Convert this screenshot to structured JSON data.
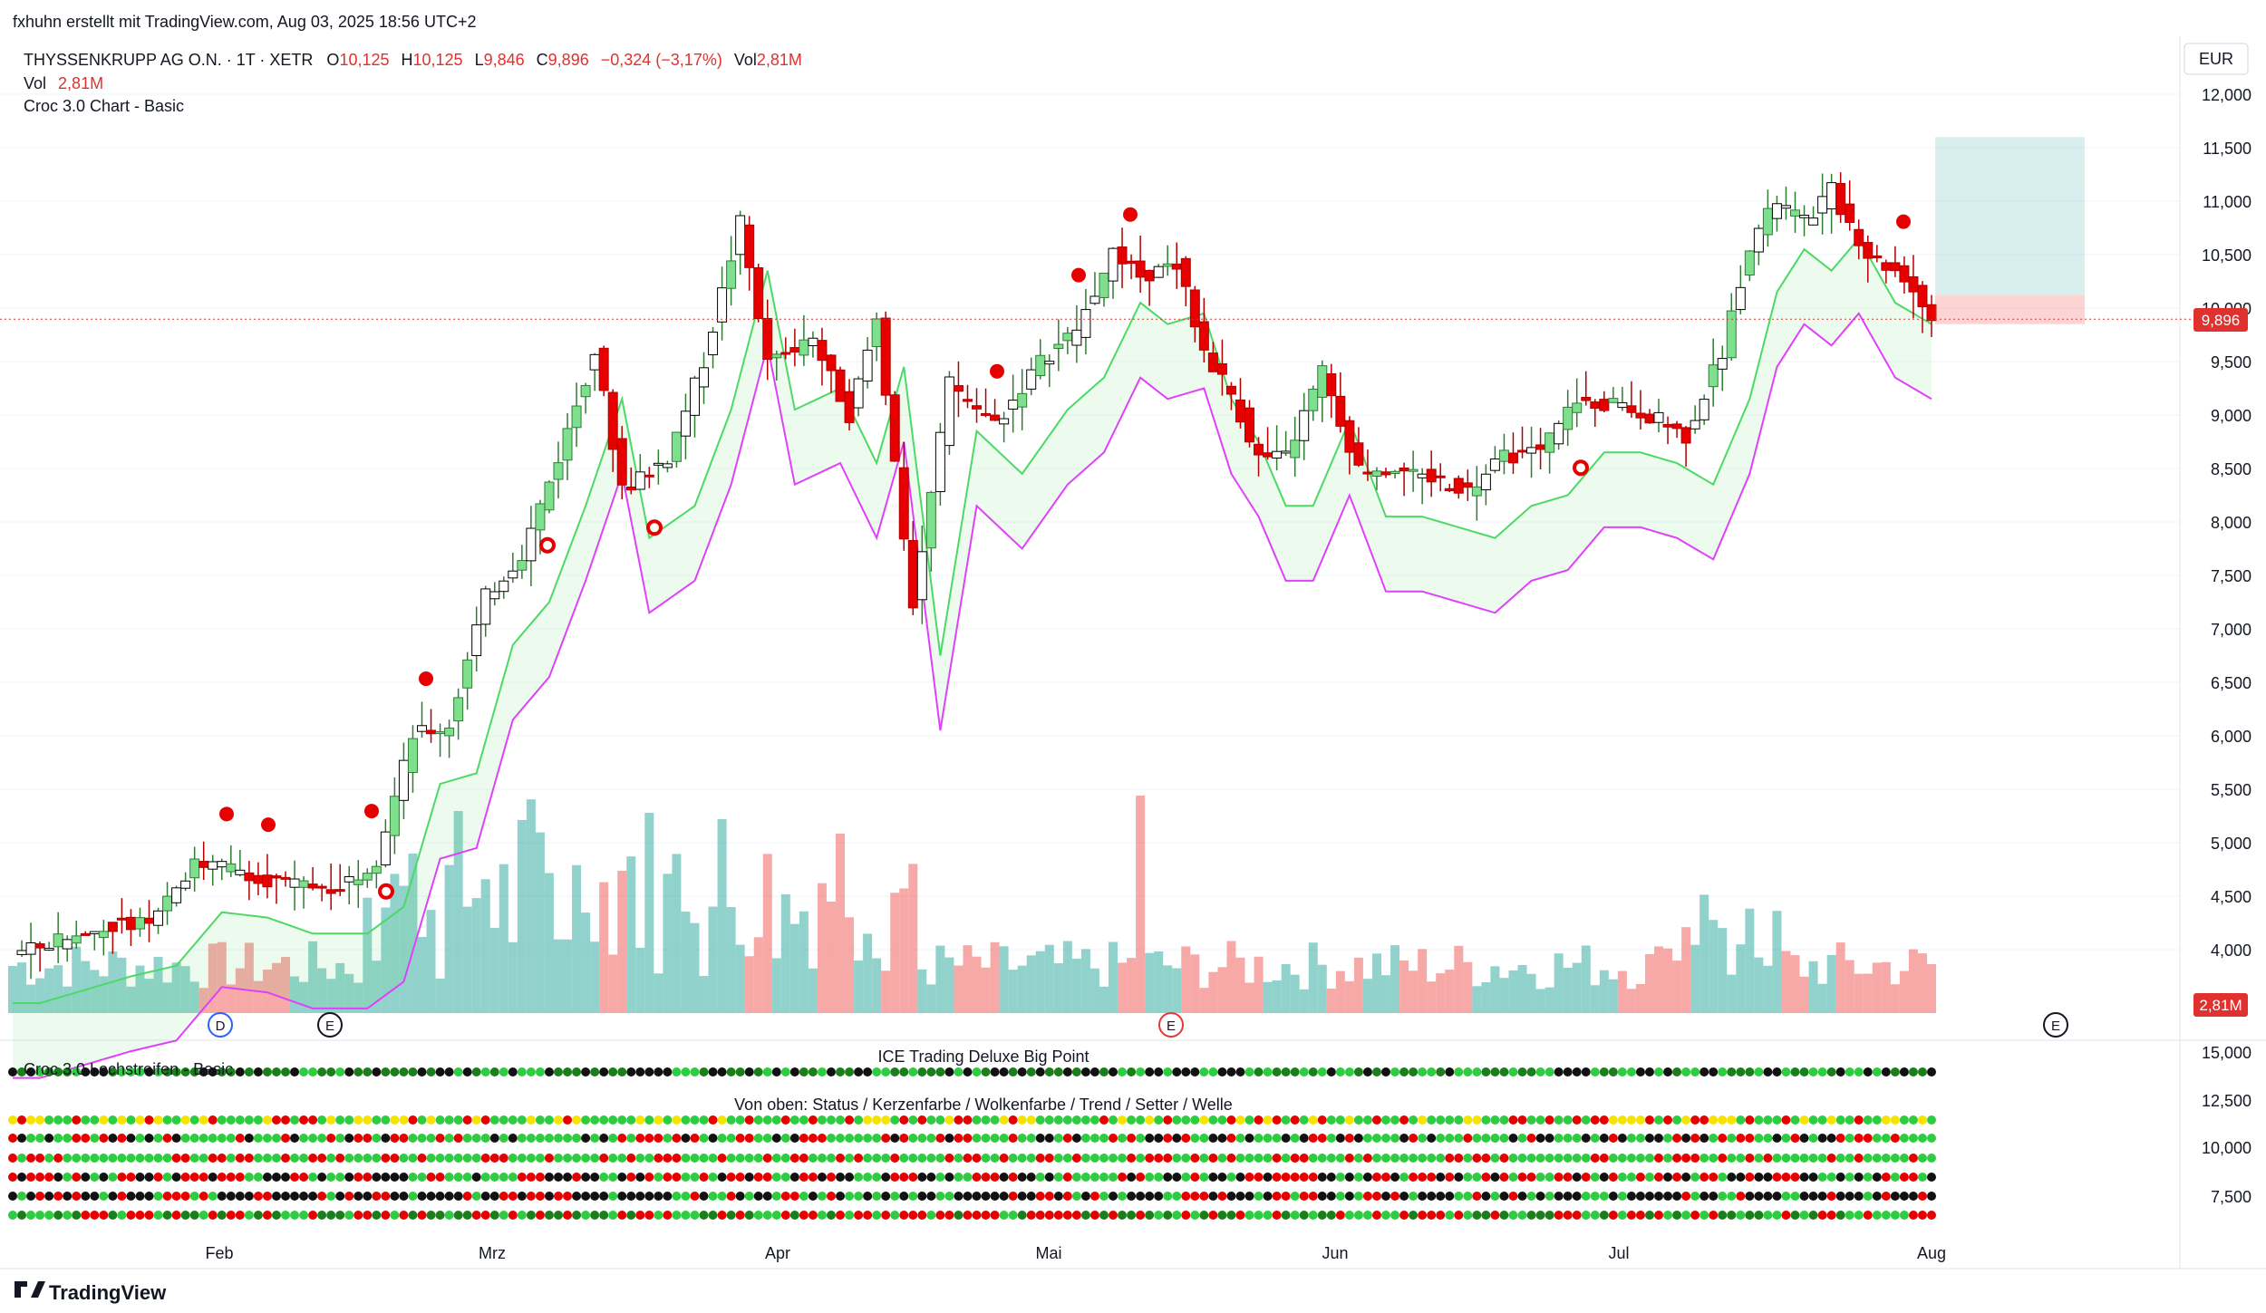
{
  "header": {
    "author_line": "fxhuhn erstellt mit TradingView.com, Aug 03, 2025 18:56 UTC+2",
    "symbol": "THYSSENKRUPP AG O.N. · 1T · XETR",
    "o_label": "O",
    "o_value": "10,125",
    "h_label": "H",
    "h_value": "10,125",
    "l_label": "L",
    "l_value": "9,846",
    "c_label": "C",
    "c_value": "9,896",
    "change": "−0,324 (−3,17%)",
    "vol_label": "Vol",
    "vol_value": "2,81M",
    "vol_line_label": "Vol",
    "vol_line_value": "2,81M",
    "indicator_name": "Croc 3.0 Chart - Basic"
  },
  "currency": "EUR",
  "price_badge": "9,896",
  "volume_badge": "2,81M",
  "lower_pane": {
    "title": "ICE Trading Deluxe Big Point",
    "indicator_name": "Croc 3.0 Lochstreifen - Basic",
    "subtitle": "Von oben: Status / Kerzenfarbe / Wolkenfarbe / Trend / Setter / Welle",
    "axis_labels": [
      "15,000",
      "12,500",
      "10,000",
      "7,500"
    ]
  },
  "event_markers": [
    "D",
    "E",
    "E",
    "E"
  ],
  "footer_logo": "TradingView",
  "colors": {
    "up": "#26a69a",
    "down": "#ef5350",
    "cloud_green": "#4cd964",
    "cloud_magenta": "#e040fb",
    "red": "#e60000",
    "green": "#2ecc40",
    "dark_green": "#1a7f1a",
    "yellow": "#f5e400",
    "black": "#111111"
  },
  "chart_data": {
    "type": "candlestick",
    "ylabel": "EUR",
    "ylim": [
      3500,
      12300
    ],
    "y_ticks": [
      "12,000",
      "11,500",
      "11,000",
      "10,500",
      "10,000",
      "9,500",
      "9,000",
      "8,500",
      "8,000",
      "7,500",
      "7,000",
      "6,500",
      "6,000",
      "5,500",
      "5,000",
      "4,500",
      "4,000"
    ],
    "x_tick_labels": [
      "Feb",
      "Mrz",
      "Apr",
      "Mai",
      "Jun",
      "Jul",
      "Aug"
    ],
    "series": [
      {
        "name": "Vol",
        "kind": "volume"
      }
    ],
    "last_close": 9.896
  }
}
